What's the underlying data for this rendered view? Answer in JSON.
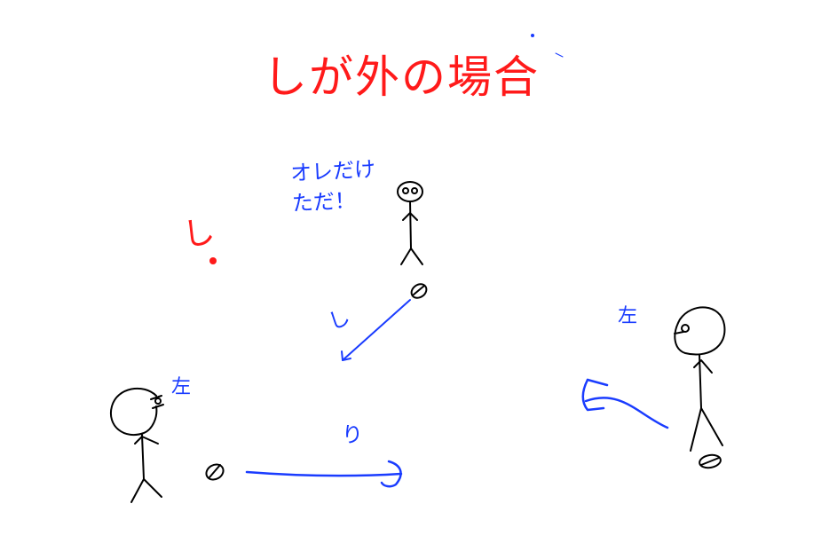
{
  "title": "しが外の場合",
  "speech": {
    "line1": "オレだけ",
    "line2": "ただ！"
  },
  "red_mark": "し",
  "labels": {
    "left_player": "左",
    "right_player": "左",
    "pass_bottom": "り",
    "pass_top": "し"
  },
  "colors": {
    "title": "#ff1a1a",
    "annotations": "#1a3cff",
    "figures": "#000000"
  }
}
